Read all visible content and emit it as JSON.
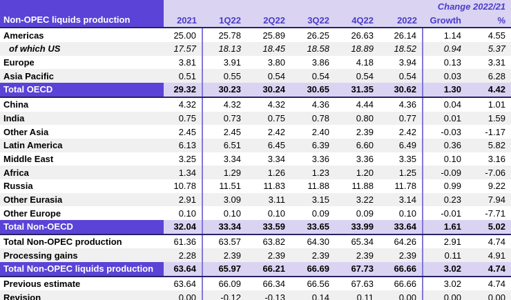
{
  "chart_data": {
    "type": "table",
    "title": "Non-OPEC liquids production",
    "change_header": "Change 2022/21",
    "columns": [
      "2021",
      "1Q22",
      "2Q22",
      "3Q22",
      "4Q22",
      "2022",
      "Growth",
      "%"
    ],
    "rows": [
      {
        "label": "Americas",
        "values": [
          "25.00",
          "25.78",
          "25.89",
          "26.25",
          "26.63",
          "26.14",
          "1.14",
          "4.55"
        ]
      },
      {
        "label": "of which US",
        "values": [
          "17.57",
          "18.13",
          "18.45",
          "18.58",
          "18.89",
          "18.52",
          "0.94",
          "5.37"
        ]
      },
      {
        "label": "Europe",
        "values": [
          "3.81",
          "3.91",
          "3.80",
          "3.86",
          "4.18",
          "3.94",
          "0.13",
          "3.31"
        ]
      },
      {
        "label": "Asia Pacific",
        "values": [
          "0.51",
          "0.55",
          "0.54",
          "0.54",
          "0.54",
          "0.54",
          "0.03",
          "6.28"
        ]
      },
      {
        "label": "Total OECD",
        "values": [
          "29.32",
          "30.23",
          "30.24",
          "30.65",
          "31.35",
          "30.62",
          "1.30",
          "4.42"
        ]
      },
      {
        "label": "China",
        "values": [
          "4.32",
          "4.32",
          "4.32",
          "4.36",
          "4.44",
          "4.36",
          "0.04",
          "1.01"
        ]
      },
      {
        "label": "India",
        "values": [
          "0.75",
          "0.73",
          "0.75",
          "0.78",
          "0.80",
          "0.77",
          "0.01",
          "1.59"
        ]
      },
      {
        "label": "Other Asia",
        "values": [
          "2.45",
          "2.45",
          "2.42",
          "2.40",
          "2.39",
          "2.42",
          "-0.03",
          "-1.17"
        ]
      },
      {
        "label": "Latin America",
        "values": [
          "6.13",
          "6.51",
          "6.45",
          "6.39",
          "6.60",
          "6.49",
          "0.36",
          "5.82"
        ]
      },
      {
        "label": "Middle East",
        "values": [
          "3.25",
          "3.34",
          "3.34",
          "3.36",
          "3.36",
          "3.35",
          "0.10",
          "3.16"
        ]
      },
      {
        "label": "Africa",
        "values": [
          "1.34",
          "1.29",
          "1.26",
          "1.23",
          "1.20",
          "1.25",
          "-0.09",
          "-7.06"
        ]
      },
      {
        "label": "Russia",
        "values": [
          "10.78",
          "11.51",
          "11.83",
          "11.88",
          "11.88",
          "11.78",
          "0.99",
          "9.22"
        ]
      },
      {
        "label": "Other Eurasia",
        "values": [
          "2.91",
          "3.09",
          "3.11",
          "3.15",
          "3.22",
          "3.14",
          "0.23",
          "7.94"
        ]
      },
      {
        "label": "Other Europe",
        "values": [
          "0.10",
          "0.10",
          "0.10",
          "0.09",
          "0.09",
          "0.10",
          "-0.01",
          "-7.71"
        ]
      },
      {
        "label": "Total Non-OECD",
        "values": [
          "32.04",
          "33.34",
          "33.59",
          "33.65",
          "33.99",
          "33.64",
          "1.61",
          "5.02"
        ]
      },
      {
        "label": "Total Non-OPEC production",
        "values": [
          "61.36",
          "63.57",
          "63.82",
          "64.30",
          "65.34",
          "64.26",
          "2.91",
          "4.74"
        ]
      },
      {
        "label": "Processing gains",
        "values": [
          "2.28",
          "2.39",
          "2.39",
          "2.39",
          "2.39",
          "2.39",
          "0.11",
          "4.91"
        ]
      },
      {
        "label": "Total Non-OPEC liquids production",
        "values": [
          "63.64",
          "65.97",
          "66.21",
          "66.69",
          "67.73",
          "66.66",
          "3.02",
          "4.74"
        ]
      },
      {
        "label": "Previous estimate",
        "values": [
          "63.64",
          "66.09",
          "66.34",
          "66.56",
          "67.63",
          "66.66",
          "3.02",
          "4.74"
        ]
      },
      {
        "label": "Revision",
        "values": [
          "0.00",
          "-0.12",
          "-0.13",
          "0.14",
          "0.11",
          "0.00",
          "0.00",
          "0.00"
        ]
      }
    ]
  },
  "colors": {
    "header_block_purple": "#5a43d6",
    "header_lavender": "#dad3f2",
    "header_text_purple": "#4a3cca",
    "row_stripe_gray": "#f0f0f0",
    "dark_separator": "#262262",
    "vertical_rule_purple": "#8277d8",
    "bottom_rule_purple": "#a89de3"
  }
}
